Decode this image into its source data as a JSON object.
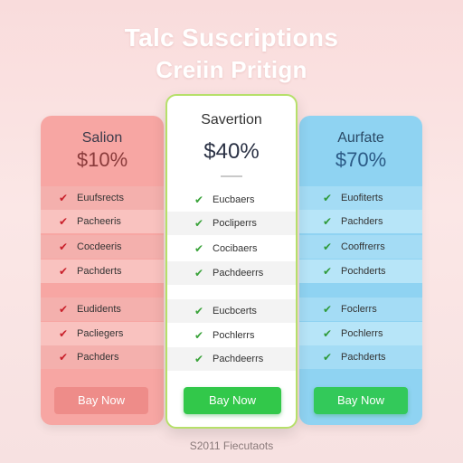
{
  "header": {
    "title": "Talc Suscriptions",
    "subtitle": "Creiin Pritign"
  },
  "plans": [
    {
      "name": "Salion",
      "price": "$10%",
      "features": [
        "Euufsrects",
        "Pacheeris",
        "Cocdeeris",
        "Pachderts",
        "Eudidents",
        "Pacliegers",
        "Pachders"
      ],
      "button": "Bay Now"
    },
    {
      "name": "Savertion",
      "price": "$40%",
      "features": [
        "Eucbaers",
        "Pocliperrs",
        "Cocibaers",
        "Pachdeerrs",
        "Eucbcerts",
        "Pochlerrs",
        "Pachdeerrs"
      ],
      "button": "Bay Now"
    },
    {
      "name": "Aurfate",
      "price": "$70%",
      "features": [
        "Euofiterts",
        "Pachders",
        "Cooffrerrs",
        "Pochderts",
        "Foclerrs",
        "Pochlerrs",
        "Pachderts"
      ],
      "button": "Bay Now"
    }
  ],
  "footer": {
    "text": "S2011 Fiecutaots"
  },
  "colors": {
    "left_card": "#f7a6a3",
    "mid_border": "#b6e06a",
    "right_card": "#8fd3f2",
    "buy_green": "#32c84a",
    "check_red": "#c81f2a",
    "check_green": "#3aa33a"
  }
}
